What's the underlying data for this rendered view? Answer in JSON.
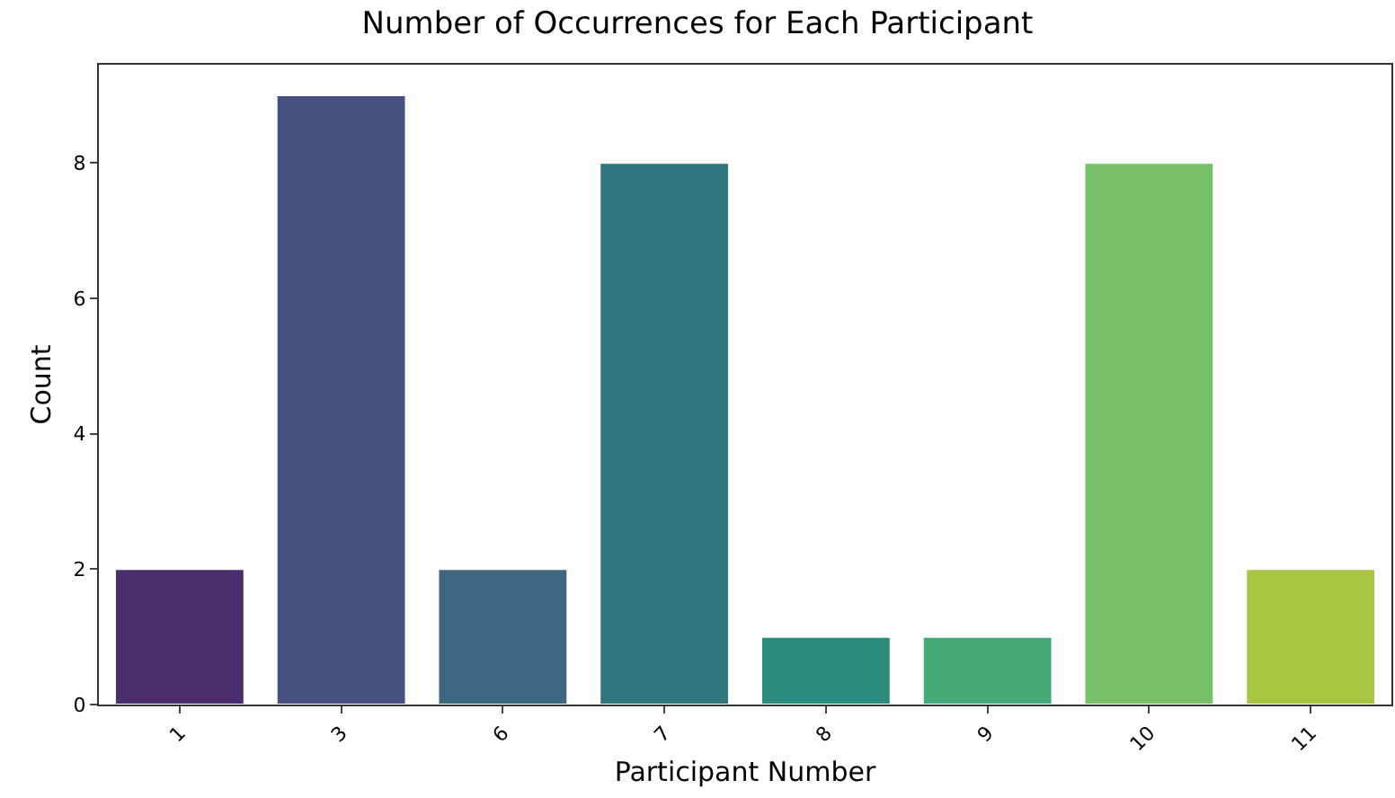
{
  "chart_data": {
    "type": "bar",
    "title": "Number of Occurrences for Each Participant",
    "xlabel": "Participant Number",
    "ylabel": "Count",
    "categories": [
      "1",
      "3",
      "6",
      "7",
      "8",
      "9",
      "10",
      "11"
    ],
    "values": [
      2,
      9,
      2,
      8,
      1,
      1,
      8,
      2
    ],
    "colors": [
      "#4a2e6e",
      "#47507e",
      "#3d6680",
      "#31777d",
      "#2a8c7c",
      "#45a978",
      "#78c06a",
      "#a8c644"
    ],
    "ylim": [
      0,
      9.45
    ],
    "yticks": [
      0,
      2,
      4,
      6,
      8
    ],
    "legend": false
  }
}
